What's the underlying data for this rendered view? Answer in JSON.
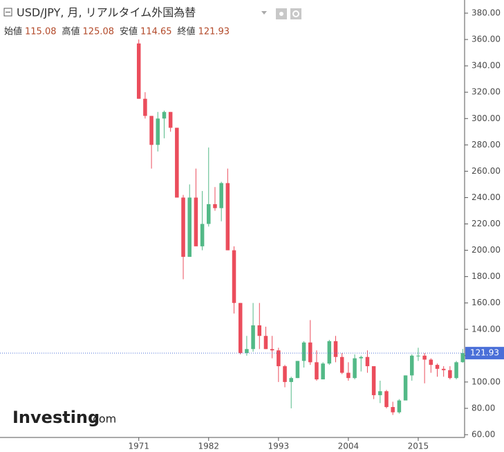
{
  "chart_data": {
    "type": "candlestick",
    "title": "USD/JPY, 月, リアルタイム外国為替",
    "ohlc_header": [
      {
        "label": "始値",
        "value": "115.08"
      },
      {
        "label": "高値",
        "value": "125.08"
      },
      {
        "label": "安値",
        "value": "114.65"
      },
      {
        "label": "終値",
        "value": "121.93"
      }
    ],
    "last_price": {
      "value": 121.93,
      "label": "121.93"
    },
    "logo": {
      "brand": "Investing",
      "suffix": ".com"
    },
    "up_color": "#53b987",
    "down_color": "#eb4d5c",
    "x": [
      1971,
      1972,
      1973,
      1974,
      1975,
      1976,
      1977,
      1978,
      1979,
      1980,
      1981,
      1982,
      1983,
      1984,
      1985,
      1986,
      1987,
      1988,
      1989,
      1990,
      1991,
      1992,
      1993,
      1994,
      1995,
      1996,
      1997,
      1998,
      1999,
      2000,
      2001,
      2002,
      2003,
      2004,
      2005,
      2006,
      2007,
      2008,
      2009,
      2010,
      2011,
      2012,
      2013,
      2014,
      2015,
      2016,
      2017,
      2018,
      2019,
      2020,
      2021,
      2022
    ],
    "open": [
      357,
      315,
      302,
      280,
      300,
      305,
      293,
      240,
      195,
      240,
      203,
      220,
      235,
      232,
      251,
      200,
      160,
      122,
      125,
      143,
      135,
      125,
      124,
      112,
      100,
      103,
      116,
      130,
      115,
      102,
      114,
      131,
      119,
      107,
      103,
      118,
      119,
      112,
      90,
      93,
      81,
      77,
      86,
      105,
      120,
      120,
      117,
      113,
      110,
      109,
      103,
      115.08
    ],
    "high": [
      360,
      320,
      302,
      305,
      306,
      305,
      293,
      242,
      250,
      262,
      245,
      278,
      248,
      252,
      262,
      203,
      160,
      135,
      160,
      160,
      142,
      135,
      126,
      113,
      104,
      116,
      131,
      147,
      124,
      115,
      132,
      135,
      122,
      115,
      121,
      120,
      124,
      112,
      101,
      94,
      85,
      87,
      105,
      121,
      126,
      122,
      118,
      114,
      112,
      112,
      116,
      125.08
    ],
    "low": [
      315,
      300,
      262,
      275,
      285,
      290,
      240,
      178,
      195,
      205,
      200,
      218,
      230,
      222,
      200,
      152,
      121,
      120,
      123,
      125,
      125,
      118,
      100,
      96,
      80,
      103,
      111,
      113,
      101,
      102,
      113,
      115,
      106,
      101,
      102,
      108,
      107,
      87,
      84,
      80,
      75,
      76,
      86,
      101,
      116,
      99,
      107,
      104,
      104,
      102,
      102,
      114.65
    ],
    "close": [
      315,
      302,
      280,
      300,
      305,
      293,
      240,
      195,
      240,
      203,
      220,
      235,
      232,
      251,
      200,
      160,
      122,
      125,
      143,
      135,
      125,
      124,
      112,
      100,
      103,
      116,
      130,
      115,
      102,
      114,
      131,
      119,
      107,
      103,
      118,
      119,
      112,
      90,
      93,
      81,
      77,
      86,
      105,
      120,
      120,
      117,
      113,
      110,
      109,
      103,
      115,
      121.93
    ],
    "xlim": [
      1949.15,
      2022.3
    ],
    "xticks": [
      1971,
      1982,
      1993,
      2004,
      2015
    ],
    "ylim": [
      60,
      380
    ],
    "yticks": [
      {
        "value": 60,
        "label": "60.00"
      },
      {
        "value": 80,
        "label": "80.00"
      },
      {
        "value": 100,
        "label": "100.00"
      },
      {
        "value": 120,
        "label": "120.00"
      },
      {
        "value": 140,
        "label": "140.00"
      },
      {
        "value": 160,
        "label": "160.00"
      },
      {
        "value": 180,
        "label": "180.00"
      },
      {
        "value": 200,
        "label": "200.00"
      },
      {
        "value": 220,
        "label": "220.00"
      },
      {
        "value": 240,
        "label": "240.00"
      },
      {
        "value": 260,
        "label": "260.00"
      },
      {
        "value": 280,
        "label": "280.00"
      },
      {
        "value": 300,
        "label": "300.00"
      },
      {
        "value": 320,
        "label": "320.00"
      },
      {
        "value": 340,
        "label": "340.00"
      },
      {
        "value": 360,
        "label": "360.00"
      },
      {
        "value": 380,
        "label": "380.00"
      }
    ]
  }
}
